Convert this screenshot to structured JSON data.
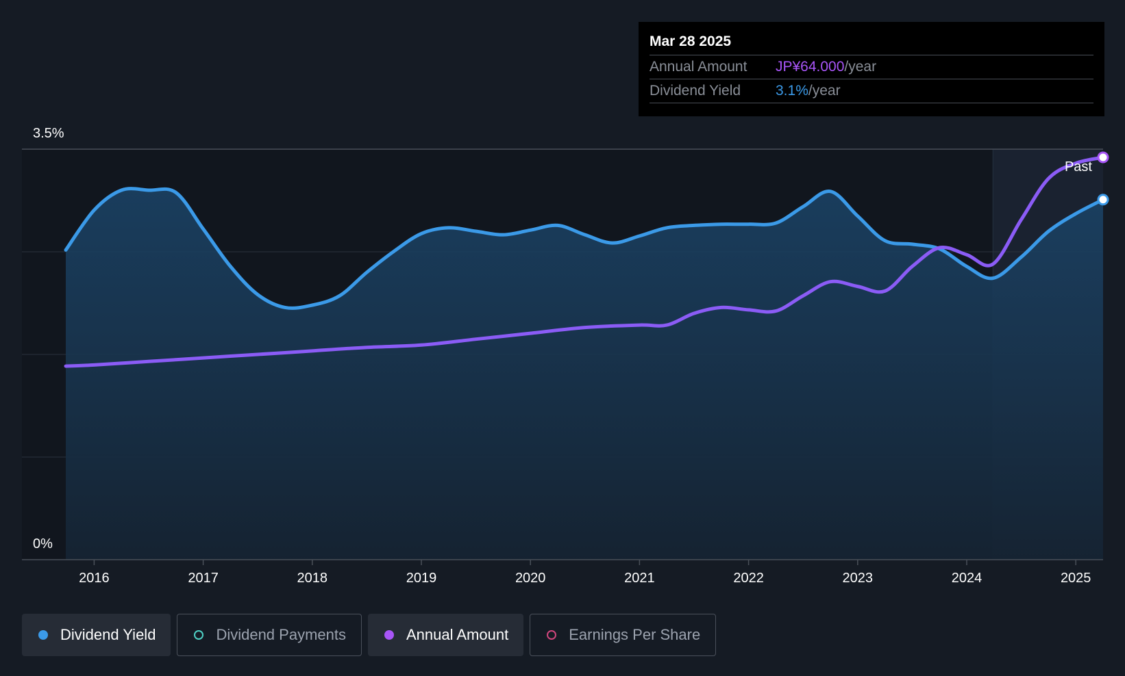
{
  "tooltip": {
    "date": "Mar 28 2025",
    "rows": [
      {
        "label": "Annual Amount",
        "value": "JP¥64.000",
        "unit": "/year"
      },
      {
        "label": "Dividend Yield",
        "value": "3.1%",
        "unit": "/year"
      }
    ]
  },
  "legend": [
    {
      "label": "Dividend Yield",
      "active": true
    },
    {
      "label": "Dividend Payments",
      "active": false
    },
    {
      "label": "Annual Amount",
      "active": true
    },
    {
      "label": "Earnings Per Share",
      "active": false
    }
  ],
  "colors": {
    "background": "#151b24",
    "dividend_yield": "#3b9ae8",
    "annual_amount": "#a855f7",
    "dividend_payments": "#4fd1c5",
    "earnings_per_share": "#d0467d"
  },
  "chart_data": {
    "type": "line",
    "y_axis": {
      "top_label": "3.5%",
      "bottom_label": "0%",
      "ylim": [
        0,
        3.5
      ]
    },
    "x_ticks": [
      "2016",
      "2017",
      "2018",
      "2019",
      "2020",
      "2021",
      "2022",
      "2023",
      "2024",
      "2025"
    ],
    "xlim": [
      2015.74,
      2025.25
    ],
    "past_label": "Past",
    "past_region_start": 2024.24,
    "grid": true,
    "series": [
      {
        "name": "Dividend Yield",
        "area": true,
        "points": [
          [
            2015.74,
            2.64
          ],
          [
            2016.0,
            2.98
          ],
          [
            2016.25,
            3.15
          ],
          [
            2016.5,
            3.15
          ],
          [
            2016.75,
            3.13
          ],
          [
            2017.0,
            2.82
          ],
          [
            2017.25,
            2.5
          ],
          [
            2017.5,
            2.26
          ],
          [
            2017.75,
            2.15
          ],
          [
            2018.0,
            2.17
          ],
          [
            2018.25,
            2.25
          ],
          [
            2018.5,
            2.45
          ],
          [
            2018.75,
            2.63
          ],
          [
            2019.0,
            2.78
          ],
          [
            2019.25,
            2.83
          ],
          [
            2019.5,
            2.8
          ],
          [
            2019.75,
            2.77
          ],
          [
            2020.0,
            2.81
          ],
          [
            2020.25,
            2.85
          ],
          [
            2020.5,
            2.77
          ],
          [
            2020.75,
            2.7
          ],
          [
            2021.0,
            2.76
          ],
          [
            2021.25,
            2.83
          ],
          [
            2021.5,
            2.85
          ],
          [
            2021.75,
            2.86
          ],
          [
            2022.0,
            2.86
          ],
          [
            2022.25,
            2.87
          ],
          [
            2022.5,
            3.01
          ],
          [
            2022.75,
            3.14
          ],
          [
            2023.0,
            2.93
          ],
          [
            2023.25,
            2.72
          ],
          [
            2023.5,
            2.69
          ],
          [
            2023.75,
            2.65
          ],
          [
            2024.0,
            2.5
          ],
          [
            2024.24,
            2.4
          ],
          [
            2024.5,
            2.58
          ],
          [
            2024.75,
            2.8
          ],
          [
            2025.0,
            2.95
          ],
          [
            2025.25,
            3.07
          ]
        ]
      },
      {
        "name": "Annual Amount",
        "area": false,
        "points": [
          [
            2015.74,
            1.65
          ],
          [
            2016.0,
            1.66
          ],
          [
            2016.5,
            1.69
          ],
          [
            2017.0,
            1.72
          ],
          [
            2017.5,
            1.75
          ],
          [
            2018.0,
            1.78
          ],
          [
            2018.5,
            1.81
          ],
          [
            2019.0,
            1.83
          ],
          [
            2019.5,
            1.88
          ],
          [
            2020.0,
            1.93
          ],
          [
            2020.5,
            1.98
          ],
          [
            2021.0,
            2.0
          ],
          [
            2021.25,
            2.0
          ],
          [
            2021.5,
            2.1
          ],
          [
            2021.75,
            2.15
          ],
          [
            2022.0,
            2.13
          ],
          [
            2022.25,
            2.12
          ],
          [
            2022.5,
            2.25
          ],
          [
            2022.75,
            2.37
          ],
          [
            2023.0,
            2.33
          ],
          [
            2023.25,
            2.29
          ],
          [
            2023.5,
            2.5
          ],
          [
            2023.75,
            2.66
          ],
          [
            2024.0,
            2.6
          ],
          [
            2024.24,
            2.52
          ],
          [
            2024.5,
            2.9
          ],
          [
            2024.75,
            3.25
          ],
          [
            2025.0,
            3.38
          ],
          [
            2025.25,
            3.43
          ]
        ]
      }
    ]
  }
}
